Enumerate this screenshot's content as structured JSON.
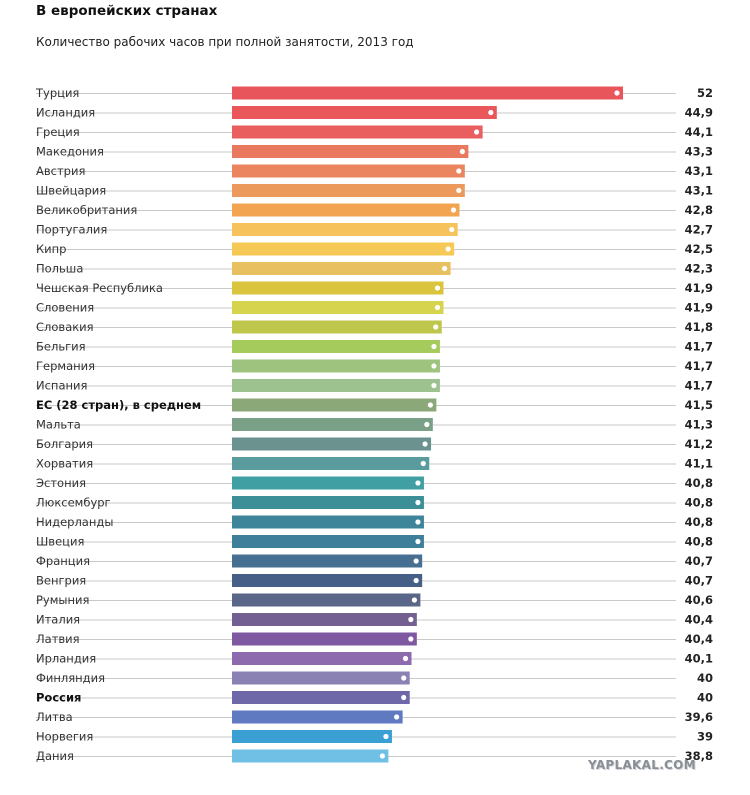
{
  "title": "В европейских странах",
  "subtitle": "Количество рабочих часов при полной занятости, 2013 год",
  "watermark": "YAPLAKAL.COM",
  "chart_data": {
    "type": "bar",
    "orientation": "horizontal",
    "title": "Количество рабочих часов при полной занятости, 2013 год",
    "categories": [
      "Турция",
      "Исландия",
      "Греция",
      "Македония",
      "Австрия",
      "Швейцария",
      "Великобритания",
      "Португалия",
      "Кипр",
      "Польша",
      "Чешская Республика",
      "Словения",
      "Словакия",
      "Бельгия",
      "Германия",
      "Испания",
      "ЕС (28 стран), в среднем",
      "Мальта",
      "Болгария",
      "Хорватия",
      "Эстония",
      "Люксембург",
      "Нидерланды",
      "Швеция",
      "Франция",
      "Венгрия",
      "Румыния",
      "Италия",
      "Латвия",
      "Ирландия",
      "Финляндия",
      "Россия",
      "Литва",
      "Норвегия",
      "Дания"
    ],
    "values": [
      52,
      44.9,
      44.1,
      43.3,
      43.1,
      43.1,
      42.8,
      42.7,
      42.5,
      42.3,
      41.9,
      41.9,
      41.8,
      41.7,
      41.7,
      41.7,
      41.5,
      41.3,
      41.2,
      41.1,
      40.8,
      40.8,
      40.8,
      40.8,
      40.7,
      40.7,
      40.6,
      40.4,
      40.4,
      40.1,
      40,
      40,
      39.6,
      39,
      38.8
    ],
    "value_labels": [
      "52",
      "44,9",
      "44,1",
      "43,3",
      "43,1",
      "43,1",
      "42,8",
      "42,7",
      "42,5",
      "42,3",
      "41,9",
      "41,9",
      "41,8",
      "41,7",
      "41,7",
      "41,7",
      "41,5",
      "41,3",
      "41,2",
      "41,1",
      "40,8",
      "40,8",
      "40,8",
      "40,8",
      "40,7",
      "40,7",
      "40,6",
      "40,4",
      "40,4",
      "40,1",
      "40",
      "40",
      "39,6",
      "39",
      "38,8"
    ],
    "bold_categories": [
      "ЕС (28 стран), в среднем",
      "Россия"
    ],
    "colors": [
      "#e8565c",
      "#e9575b",
      "#e95e5f",
      "#e9795e",
      "#ea855f",
      "#ec9a5c",
      "#f2a450",
      "#f5c25b",
      "#f6c956",
      "#e9c05f",
      "#dac43d",
      "#d6d34d",
      "#bfc64c",
      "#a6cb5d",
      "#9dc37f",
      "#9ec28f",
      "#8aa878",
      "#7ba088",
      "#6c9290",
      "#5a9c9e",
      "#3f9fa3",
      "#3c8e97",
      "#3f8599",
      "#3f7f99",
      "#466f92",
      "#465f86",
      "#5a6688",
      "#735f92",
      "#7e59a2",
      "#8d6aad",
      "#8b82b4",
      "#6e68a8",
      "#5f7ac0",
      "#3aa0d4",
      "#6fc0e4"
    ],
    "xlim": [
      30,
      52
    ]
  }
}
